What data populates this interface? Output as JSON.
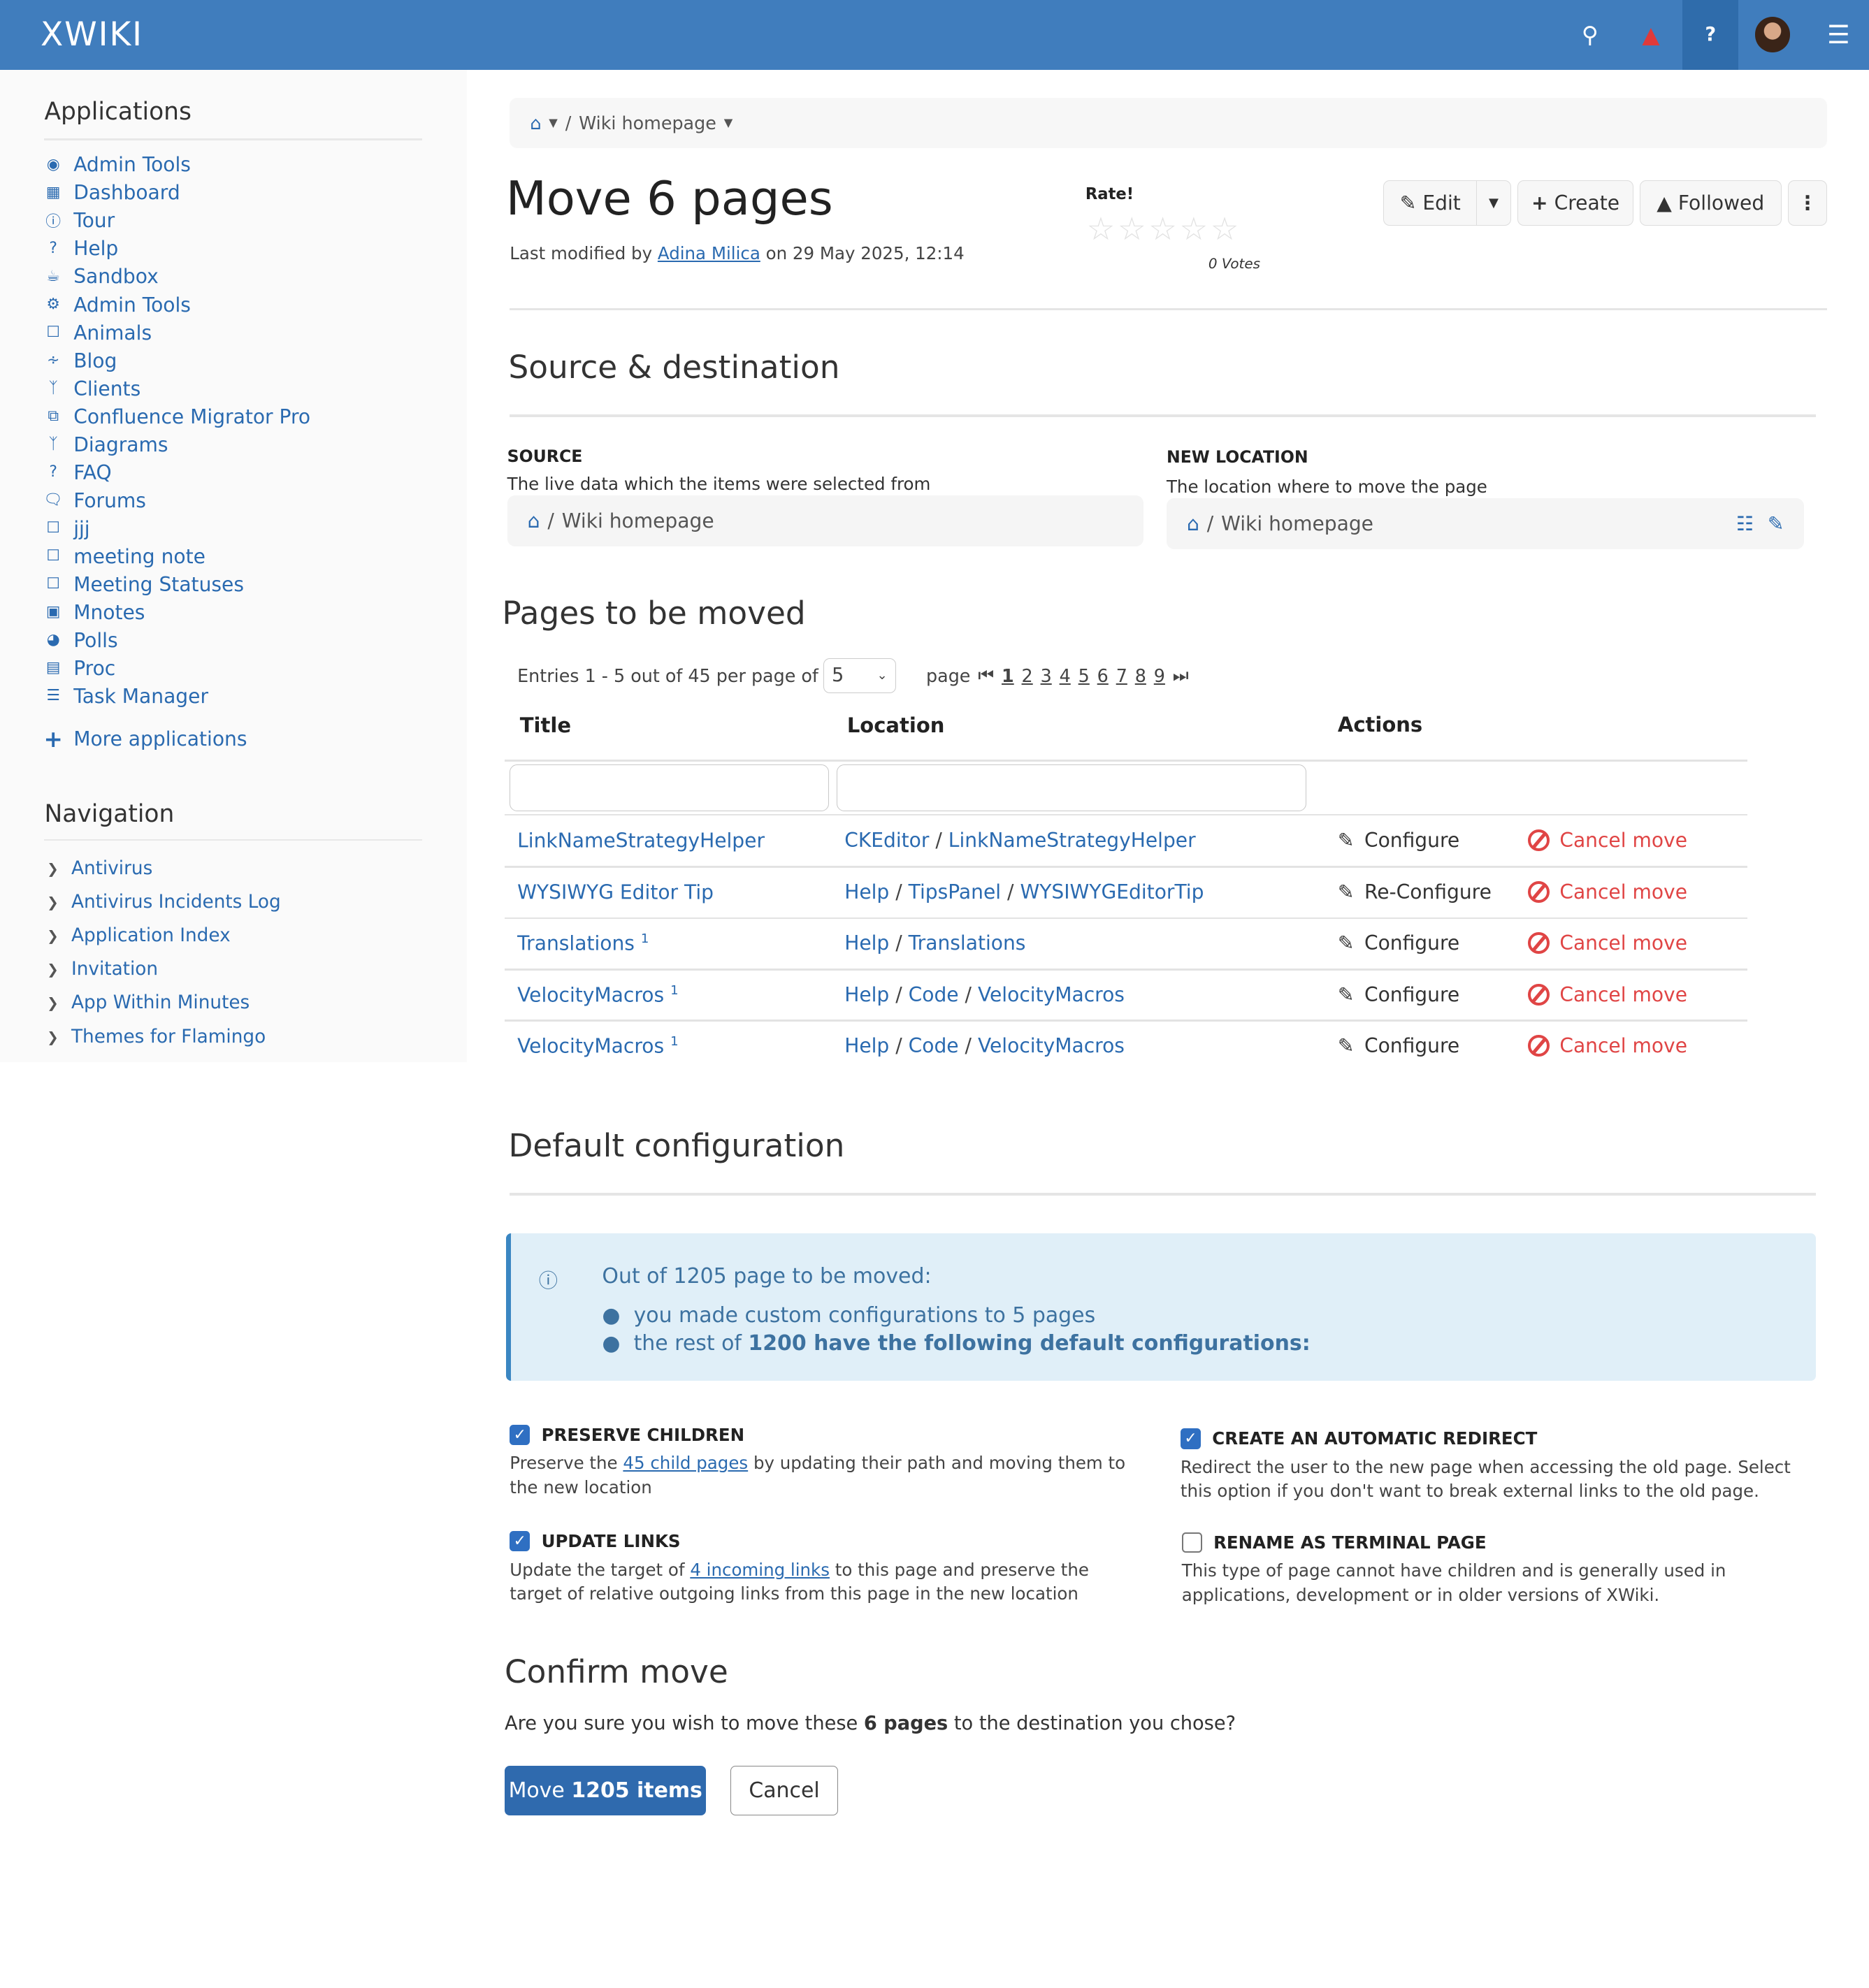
{
  "topbar": {
    "logo": "XWIKI",
    "icons": [
      "search-icon",
      "bell-icon",
      "question-icon",
      "avatar",
      "hamburger-icon"
    ],
    "brand_color": "#407dbd",
    "notification_color": "#e03a3a"
  },
  "sidebar": {
    "applications_title": "Applications",
    "apps": [
      {
        "label": "Admin Tools",
        "icon": "globe-icon"
      },
      {
        "label": "Dashboard",
        "icon": "grid-icon"
      },
      {
        "label": "Tour",
        "icon": "info-icon"
      },
      {
        "label": "Help",
        "icon": "question-icon"
      },
      {
        "label": "Sandbox",
        "icon": "coffee-icon"
      },
      {
        "label": "Admin Tools",
        "icon": "gear-icon"
      },
      {
        "label": "Animals",
        "icon": "square-icon"
      },
      {
        "label": "Blog",
        "icon": "rss-icon"
      },
      {
        "label": "Clients",
        "icon": "branch-icon"
      },
      {
        "label": "Confluence Migrator Pro",
        "icon": "copy-icon"
      },
      {
        "label": "Diagrams",
        "icon": "branch-icon"
      },
      {
        "label": "FAQ",
        "icon": "question-icon"
      },
      {
        "label": "Forums",
        "icon": "comments-icon"
      },
      {
        "label": "jjj",
        "icon": "square-icon"
      },
      {
        "label": "meeting note",
        "icon": "square-icon"
      },
      {
        "label": "Meeting Statuses",
        "icon": "square-icon"
      },
      {
        "label": "Mnotes",
        "icon": "briefcase-icon"
      },
      {
        "label": "Polls",
        "icon": "pie-icon"
      },
      {
        "label": "Proc",
        "icon": "book-icon"
      },
      {
        "label": "Task Manager",
        "icon": "list-icon"
      }
    ],
    "more_apps": "More applications",
    "navigation_title": "Navigation",
    "nav": [
      "Antivirus",
      "Antivirus Incidents Log",
      "Application Index",
      "Invitation",
      "App Within Minutes",
      "Themes for Flamingo"
    ]
  },
  "breadcrumb": {
    "page": "Wiki homepage",
    "sep": "/"
  },
  "header": {
    "title": "Move 6 pages",
    "meta_prefix": "Last modified by",
    "author": "Adina Milica",
    "meta_suffix": "on 29 May 2025, 12:14",
    "rate_label": "Rate!",
    "stars": "☆☆☆☆☆",
    "votes": "0 Votes",
    "edit": "Edit",
    "create": "Create",
    "followed": "Followed"
  },
  "source_dest": {
    "heading": "Source & destination",
    "source_label": "SOURCE",
    "source_desc": "The live data which the items were selected from",
    "source_path": "Wiki homepage",
    "new_label": "NEW LOCATION",
    "new_desc": "The location where to move the page",
    "new_path": "Wiki homepage"
  },
  "pages": {
    "heading": "Pages to be moved",
    "entries": "Entries 1 - 5 out of 45 per page of",
    "per_page": "5",
    "page_label": "page",
    "page_numbers": [
      "1",
      "2",
      "3",
      "4",
      "5",
      "6",
      "7",
      "8",
      "9"
    ],
    "current_page": "1",
    "columns": [
      "Title",
      "Location",
      "Actions"
    ],
    "rows": [
      {
        "title": "LinkNameStrategyHelper",
        "sup": "",
        "location": [
          "CKEditor",
          "LinkNameStrategyHelper"
        ],
        "action": "Configure",
        "cancel": "Cancel move"
      },
      {
        "title": "WYSIWYG Editor Tip",
        "sup": "",
        "location": [
          "Help",
          "TipsPanel",
          "WYSIWYGEditorTip"
        ],
        "action": "Re-Configure",
        "cancel": "Cancel move"
      },
      {
        "title": "Translations",
        "sup": "1",
        "location": [
          "Help",
          "Translations"
        ],
        "action": "Configure",
        "cancel": "Cancel move"
      },
      {
        "title": "VelocityMacros",
        "sup": "1",
        "location": [
          "Help",
          "Code",
          "VelocityMacros"
        ],
        "action": "Configure",
        "cancel": "Cancel move"
      },
      {
        "title": "VelocityMacros",
        "sup": "1",
        "location": [
          "Help",
          "Code",
          "VelocityMacros"
        ],
        "action": "Configure",
        "cancel": "Cancel move"
      }
    ]
  },
  "defaults": {
    "heading": "Default configuration",
    "info_title": "Out of 1205 page to be moved:",
    "bullet1": "you made custom configurations to 5 pages",
    "bullet2_prefix": "the rest of",
    "bullet2_bold": "1200 have the following default configurations:",
    "options": [
      {
        "label": "PRESERVE CHILDREN",
        "checked": true,
        "pre": "Preserve the",
        "link": "45 child pages",
        "post": "by updating their path and moving them to the new location"
      },
      {
        "label": "CREATE AN AUTOMATIC REDIRECT",
        "checked": true,
        "pre": "Redirect the user to the new page when accessing the old page. Select this option if you don't want to break external links to the old page.",
        "link": "",
        "post": ""
      },
      {
        "label": "UPDATE LINKS",
        "checked": true,
        "pre": "Update the target of",
        "link": "4 incoming links",
        "post": "to this page and preserve the target of relative outgoing links from this page in the new location"
      },
      {
        "label": "RENAME AS TERMINAL PAGE",
        "checked": false,
        "pre": "This type of page cannot have children and is generally used in applications, development or in older versions of XWiki.",
        "link": "",
        "post": ""
      }
    ]
  },
  "confirm": {
    "heading": "Confirm move",
    "q_prefix": "Are you sure you wish to move these",
    "q_bold": "6 pages",
    "q_suffix": "to the destination you chose?",
    "move_prefix": "Move",
    "move_bold": "1205 items",
    "cancel": "Cancel"
  }
}
